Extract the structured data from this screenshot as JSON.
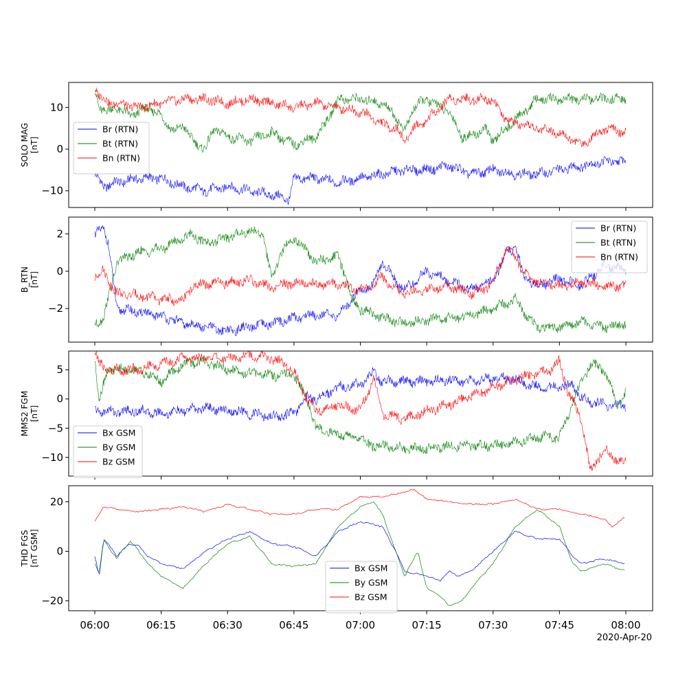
{
  "figure": {
    "date_label": "2020-Apr-20",
    "x_tick_labels": [
      "06:00",
      "06:15",
      "06:30",
      "06:45",
      "07:00",
      "07:15",
      "07:30",
      "07:45",
      "08:00"
    ]
  },
  "chart_data": [
    {
      "type": "line",
      "ylabel": "SOLO MAG\n[nT]",
      "x_unit": "minutes after 06:00 UT",
      "xlim": [
        "06:00",
        "08:00"
      ],
      "ylim": [
        -14,
        16
      ],
      "y_ticks": [
        -10,
        0,
        10
      ],
      "legend": "left",
      "series": [
        {
          "name": "Br (RTN)",
          "color": "#0000ff",
          "x": [
            0,
            2,
            5,
            10,
            15,
            20,
            25,
            30,
            35,
            40,
            44,
            45,
            50,
            55,
            60,
            65,
            70,
            75,
            80,
            85,
            90,
            95,
            100,
            105,
            110,
            115,
            120
          ],
          "y": [
            -6,
            -9,
            -8,
            -7,
            -7,
            -9,
            -10,
            -9,
            -10,
            -11,
            -12,
            -7,
            -7,
            -8,
            -7,
            -6,
            -5,
            -5,
            -4,
            -6,
            -5,
            -6,
            -6,
            -5,
            -4,
            -3,
            -3
          ]
        },
        {
          "name": "Bt (RTN)",
          "color": "#008000",
          "x": [
            0,
            1,
            3,
            5,
            8,
            12,
            15,
            18,
            20,
            22,
            25,
            27,
            30,
            35,
            40,
            45,
            50,
            52,
            55,
            60,
            65,
            68,
            70,
            72,
            75,
            80,
            83,
            85,
            88,
            90,
            95,
            100,
            105,
            110,
            115,
            120
          ],
          "y": [
            14,
            10,
            9,
            10,
            8,
            10,
            8,
            4,
            6,
            2,
            0,
            5,
            3,
            2,
            4,
            1,
            3,
            6,
            12,
            12,
            11,
            8,
            4,
            10,
            12,
            9,
            3,
            3,
            5,
            2,
            7,
            12,
            12,
            12,
            12,
            12
          ]
        },
        {
          "name": "Bn (RTN)",
          "color": "#ff0000",
          "x": [
            0,
            1,
            3,
            5,
            10,
            15,
            20,
            25,
            30,
            35,
            40,
            45,
            50,
            55,
            60,
            62,
            65,
            68,
            70,
            72,
            75,
            80,
            85,
            90,
            92,
            95,
            100,
            105,
            110,
            115,
            120
          ],
          "y": [
            15,
            13,
            11,
            11,
            10,
            11,
            12,
            12,
            11,
            12,
            11,
            10,
            11,
            10,
            9,
            8,
            6,
            5,
            2,
            5,
            7,
            12,
            12,
            12,
            8,
            6,
            5,
            4,
            1,
            5,
            4
          ]
        }
      ]
    },
    {
      "type": "line",
      "ylabel": "B_RTN\n[nT]",
      "x_unit": "minutes after 06:00 UT",
      "xlim": [
        "06:00",
        "08:00"
      ],
      "ylim": [
        -3.8,
        2.9
      ],
      "y_ticks": [
        -2,
        0,
        2
      ],
      "legend": "top-right",
      "series": [
        {
          "name": "Br (RTN)",
          "color": "#0000ff",
          "x": [
            0,
            2,
            3,
            5,
            10,
            15,
            20,
            25,
            30,
            35,
            40,
            45,
            50,
            55,
            58,
            60,
            63,
            65,
            68,
            70,
            75,
            80,
            85,
            90,
            93,
            95,
            97,
            100,
            105,
            110,
            115,
            120
          ],
          "y": [
            1.9,
            2.4,
            1.5,
            -2.0,
            -2.2,
            -2.4,
            -2.8,
            -3.0,
            -3.2,
            -3.0,
            -2.8,
            -2.5,
            -2.3,
            -2.4,
            -1.5,
            -1.0,
            -0.7,
            0.5,
            -0.5,
            -1.0,
            0.0,
            -0.5,
            -1.0,
            -0.5,
            1.0,
            1.3,
            -0.3,
            -0.8,
            -0.4,
            -0.8,
            0.3,
            0.1
          ]
        },
        {
          "name": "Bt (RTN)",
          "color": "#008000",
          "x": [
            0,
            2,
            5,
            10,
            15,
            20,
            22,
            25,
            30,
            35,
            38,
            40,
            42,
            45,
            50,
            55,
            57,
            58,
            60,
            65,
            70,
            75,
            80,
            85,
            90,
            95,
            98,
            100,
            105,
            110,
            115,
            120
          ],
          "y": [
            -2.8,
            -2.5,
            0.5,
            1.0,
            1.2,
            1.8,
            2.0,
            1.5,
            1.8,
            2.2,
            2.0,
            -0.5,
            1.0,
            1.8,
            0.5,
            0.8,
            -0.5,
            -1.5,
            -2.0,
            -2.5,
            -2.8,
            -2.6,
            -2.5,
            -2.4,
            -2.0,
            -1.5,
            -2.5,
            -3.0,
            -3.0,
            -2.7,
            -3.0,
            -2.8
          ]
        },
        {
          "name": "Bn (RTN)",
          "color": "#ff0000",
          "x": [
            0,
            2,
            3,
            5,
            10,
            15,
            20,
            22,
            25,
            30,
            35,
            40,
            45,
            50,
            55,
            58,
            60,
            63,
            65,
            68,
            70,
            75,
            80,
            85,
            88,
            90,
            93,
            95,
            97,
            100,
            105,
            110,
            115,
            120
          ],
          "y": [
            -0.3,
            0.0,
            -0.4,
            -1.2,
            -1.3,
            -1.5,
            -1.6,
            -0.8,
            -0.7,
            -0.6,
            -0.5,
            -0.9,
            -0.6,
            -0.7,
            -0.7,
            -0.9,
            -1.0,
            -0.7,
            -0.3,
            -1.0,
            -1.2,
            -1.0,
            -0.8,
            -1.2,
            -1.0,
            -0.5,
            1.2,
            0.8,
            -0.1,
            -0.6,
            -0.8,
            -0.6,
            -0.8,
            -0.8
          ]
        }
      ]
    },
    {
      "type": "line",
      "ylabel": "MMS2 FGM\n[nT]",
      "x_unit": "minutes after 06:00 UT",
      "xlim": [
        "06:00",
        "08:00"
      ],
      "ylim": [
        -13.2,
        8.2
      ],
      "y_ticks": [
        -10,
        -5,
        0,
        5
      ],
      "legend": "bottom-left",
      "series": [
        {
          "name": "Bx GSM",
          "color": "#0000ff",
          "x": [
            0,
            5,
            10,
            15,
            20,
            25,
            30,
            35,
            40,
            45,
            48,
            50,
            55,
            60,
            63,
            65,
            70,
            75,
            80,
            85,
            90,
            95,
            98,
            100,
            105,
            108,
            110,
            115,
            120
          ],
          "y": [
            -2.0,
            -2.2,
            -2.0,
            -2.5,
            -2.0,
            -1.5,
            -2.0,
            -2.5,
            -3.0,
            -2.5,
            0.5,
            0.0,
            2.0,
            2.5,
            4.5,
            3.0,
            3.0,
            3.0,
            3.2,
            3.0,
            3.5,
            3.5,
            2.5,
            2.0,
            2.0,
            2.5,
            0.0,
            -1.0,
            -1.0
          ]
        },
        {
          "name": "By GSM",
          "color": "#008000",
          "x": [
            0,
            1,
            3,
            10,
            15,
            20,
            25,
            30,
            35,
            40,
            45,
            48,
            50,
            55,
            60,
            62,
            65,
            70,
            75,
            80,
            85,
            90,
            95,
            100,
            105,
            110,
            112,
            115,
            118,
            120
          ],
          "y": [
            7.0,
            0.0,
            5.0,
            5.0,
            3.0,
            6.0,
            6.5,
            5.0,
            4.5,
            4.0,
            4.0,
            0.0,
            -5.0,
            -6.0,
            -6.5,
            -8.0,
            -8.0,
            -8.5,
            -8.5,
            -8.0,
            -8.0,
            -8.0,
            -7.5,
            -6.5,
            -6.5,
            3.0,
            6.0,
            5.0,
            -1.0,
            1.0
          ]
        },
        {
          "name": "Bz GSM",
          "color": "#ff0000",
          "x": [
            0,
            1,
            3,
            10,
            15,
            20,
            25,
            30,
            35,
            40,
            43,
            45,
            48,
            50,
            55,
            60,
            63,
            65,
            68,
            70,
            75,
            80,
            85,
            90,
            95,
            98,
            100,
            103,
            105,
            107,
            110,
            112,
            115,
            118,
            120
          ],
          "y": [
            8.0,
            6.0,
            5.0,
            5.0,
            6.0,
            7.0,
            7.0,
            7.0,
            7.5,
            7.0,
            6.0,
            4.5,
            0.0,
            -2.0,
            -1.0,
            -2.0,
            3.5,
            -2.5,
            -3.0,
            -3.5,
            -2.0,
            -1.0,
            0.5,
            2.0,
            3.5,
            4.0,
            4.5,
            5.0,
            6.5,
            1.0,
            -3.5,
            -12.5,
            -8.5,
            -10.5,
            -11.0
          ]
        }
      ]
    },
    {
      "type": "line",
      "ylabel": "THD FGS\n[nT GSM]",
      "x_unit": "minutes after 06:00 UT",
      "xlim": [
        "06:00",
        "08:00"
      ],
      "ylim": [
        -24,
        26.5
      ],
      "y_ticks": [
        -20,
        0,
        20
      ],
      "legend": "bottom-center",
      "series": [
        {
          "name": "Bx GSM",
          "color": "#0000ff",
          "x": [
            0,
            1,
            2,
            3,
            5,
            6,
            8,
            10,
            12,
            15,
            20,
            25,
            30,
            35,
            40,
            45,
            50,
            55,
            60,
            65,
            68,
            70,
            75,
            78,
            80,
            82,
            85,
            90,
            95,
            100,
            105,
            108,
            110,
            115,
            120
          ],
          "y": [
            -2,
            -10,
            5,
            3,
            -2,
            0,
            3,
            2,
            -2,
            -5,
            -7,
            0,
            5,
            8,
            3,
            2,
            -2,
            8,
            12,
            10,
            0,
            -8,
            -10,
            -12,
            -8,
            -10,
            -8,
            0,
            8,
            5,
            5,
            -2,
            -5,
            -3,
            -5
          ]
        },
        {
          "name": "By GSM",
          "color": "#008000",
          "x": [
            0,
            1,
            2,
            3,
            5,
            6,
            8,
            10,
            12,
            15,
            20,
            25,
            30,
            35,
            40,
            45,
            50,
            55,
            60,
            63,
            65,
            68,
            70,
            73,
            75,
            78,
            80,
            83,
            85,
            90,
            95,
            100,
            105,
            108,
            110,
            115,
            120
          ],
          "y": [
            -5,
            -9,
            5,
            2,
            -3,
            0,
            4,
            0,
            -5,
            -10,
            -15,
            -5,
            3,
            6,
            -5,
            -6,
            -5,
            10,
            18,
            20,
            15,
            0,
            -10,
            0,
            -15,
            -18,
            -22,
            -20,
            -15,
            -5,
            10,
            17,
            10,
            -5,
            -8,
            -5,
            -8
          ]
        },
        {
          "name": "Bz GSM",
          "color": "#ff0000",
          "x": [
            0,
            2,
            5,
            10,
            15,
            20,
            25,
            30,
            35,
            40,
            45,
            50,
            55,
            60,
            65,
            70,
            72,
            75,
            80,
            85,
            90,
            95,
            100,
            105,
            110,
            115,
            117,
            120
          ],
          "y": [
            12,
            18,
            17,
            16,
            17,
            18,
            16,
            19,
            17,
            15,
            15,
            17,
            17,
            22,
            22,
            24,
            25,
            21,
            20,
            19,
            19,
            21,
            17,
            17,
            15,
            13,
            10,
            14
          ]
        }
      ]
    }
  ]
}
